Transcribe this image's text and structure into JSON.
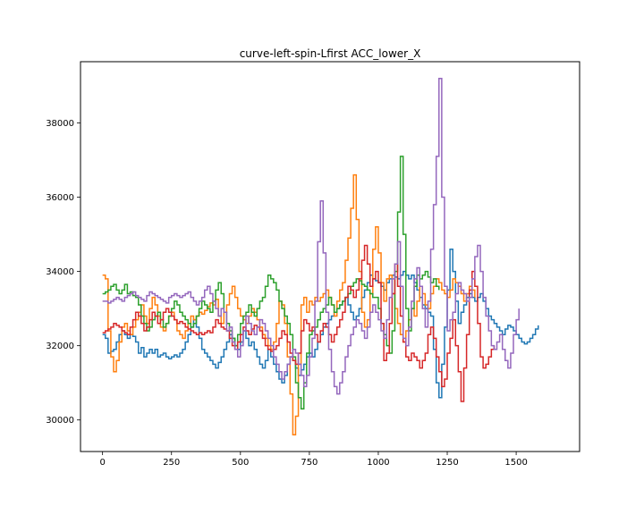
{
  "chart_data": {
    "type": "line",
    "title": "curve-left-spin-Lfirst ACC_lower_X",
    "xlabel": "",
    "ylabel": "",
    "xlim": [
      -80,
      1730
    ],
    "ylim": [
      29150,
      39650
    ],
    "x_ticks": [
      0,
      250,
      500,
      750,
      1000,
      1250,
      1500
    ],
    "x_tick_labels": [
      "0",
      "250",
      "500",
      "750",
      "1000",
      "1250",
      "1500"
    ],
    "y_ticks": [
      30000,
      32000,
      34000,
      36000,
      38000
    ],
    "y_tick_labels": [
      "30000",
      "32000",
      "34000",
      "36000",
      "38000"
    ],
    "grid": false,
    "legend": "none",
    "step": 10,
    "series": [
      {
        "color": "#1f77b4",
        "x0": 0,
        "dx": 10,
        "values": [
          32300,
          32200,
          31800,
          31850,
          31900,
          32100,
          32300,
          32400,
          32300,
          32200,
          32300,
          32250,
          32100,
          31800,
          31950,
          31700,
          31800,
          31900,
          31800,
          31900,
          31700,
          31750,
          31800,
          31700,
          31650,
          31700,
          31750,
          31700,
          31800,
          31900,
          32100,
          32300,
          32500,
          32700,
          32500,
          32200,
          31900,
          31800,
          31700,
          31600,
          31500,
          31400,
          31550,
          31700,
          31900,
          32100,
          32300,
          32200,
          32000,
          31900,
          32100,
          32400,
          32200,
          32000,
          32100,
          31900,
          31700,
          31500,
          31400,
          31600,
          31900,
          31700,
          31500,
          31300,
          31100,
          31000,
          31200,
          31500,
          31700,
          31600,
          31400,
          31200,
          31350,
          31500,
          31700,
          31800,
          31700,
          31900,
          32100,
          32300,
          32500,
          32600,
          32700,
          32800,
          32900,
          33000,
          33100,
          33200,
          33300,
          33100,
          32900,
          32700,
          32800,
          33000,
          33300,
          33500,
          33700,
          33900,
          33800,
          33750,
          33700,
          33600,
          33500,
          33700,
          33800,
          33900,
          33850,
          33800,
          33900,
          34000,
          33900,
          33800,
          33900,
          33700,
          33500,
          33300,
          33100,
          33000,
          32900,
          32800,
          31900,
          31000,
          30600,
          31500,
          32500,
          33500,
          34600,
          34000,
          33200,
          32600,
          32900,
          33100,
          33300,
          33400,
          33300,
          33200,
          33300,
          33400,
          33200,
          33000,
          32800,
          32700,
          32600,
          32500,
          32400,
          32300,
          32450,
          32550,
          32500,
          32400,
          32300,
          32200,
          32100,
          32050,
          32100,
          32200,
          32300,
          32450,
          32550
        ]
      },
      {
        "color": "#ff7f0e",
        "x0": 0,
        "dx": 10,
        "values": [
          33900,
          33800,
          32400,
          31700,
          31300,
          31600,
          32100,
          32500,
          32600,
          32400,
          32300,
          32500,
          32700,
          32900,
          33100,
          32800,
          32600,
          33000,
          33300,
          33100,
          32800,
          32500,
          32400,
          32600,
          32800,
          32900,
          32700,
          32400,
          32300,
          32200,
          32400,
          32600,
          32800,
          32700,
          32800,
          32900,
          32850,
          32950,
          33050,
          33150,
          33100,
          33250,
          32800,
          32600,
          32900,
          33100,
          33400,
          33600,
          33300,
          33000,
          32800,
          32700,
          32600,
          32800,
          33000,
          32900,
          32700,
          32500,
          32300,
          32200,
          32000,
          31900,
          32100,
          32600,
          33200,
          33100,
          32600,
          31700,
          30700,
          29600,
          30100,
          31500,
          33100,
          33300,
          32900,
          33200,
          33100,
          33300,
          33200,
          33300,
          33400,
          33500,
          33300,
          33100,
          32800,
          33200,
          33500,
          33700,
          34300,
          34900,
          35700,
          36600,
          35400,
          34000,
          32900,
          32500,
          32700,
          33400,
          34600,
          35200,
          34500,
          33700,
          33200,
          33800,
          33900,
          33400,
          33000,
          32600,
          32300,
          32100,
          32400,
          32700,
          33000,
          32800,
          33200,
          33600,
          33400,
          33100,
          33000,
          33400,
          33600,
          33800,
          33700,
          33500,
          33400,
          33300,
          33500,
          33800,
          33700,
          33600,
          33400,
          33200,
          33400,
          33600,
          33500,
          33300
        ]
      },
      {
        "color": "#2ca02c",
        "x0": 0,
        "dx": 10,
        "values": [
          33400,
          33450,
          33500,
          33600,
          33650,
          33500,
          33400,
          33500,
          33650,
          33400,
          33450,
          33350,
          33300,
          33100,
          32800,
          32600,
          32400,
          32500,
          32700,
          32800,
          32900,
          32700,
          32500,
          32600,
          32800,
          33000,
          33200,
          33100,
          32900,
          32800,
          32700,
          32600,
          32500,
          32600,
          32800,
          33000,
          33200,
          33100,
          33000,
          32900,
          33200,
          33500,
          33700,
          33400,
          32900,
          32600,
          32400,
          32200,
          32000,
          32300,
          32600,
          32800,
          32900,
          33100,
          32900,
          32800,
          33000,
          33200,
          33300,
          33600,
          33900,
          33800,
          33700,
          33500,
          33200,
          33000,
          32800,
          32600,
          32300,
          31700,
          31000,
          30600,
          30300,
          31000,
          31800,
          32300,
          32400,
          32500,
          32700,
          32900,
          33000,
          33100,
          33300,
          33100,
          32900,
          33000,
          33100,
          33200,
          33300,
          33400,
          33600,
          33700,
          33800,
          33750,
          33650,
          33600,
          33500,
          33400,
          33300,
          33300,
          33000,
          32600,
          32300,
          32000,
          31800,
          32400,
          34000,
          35600,
          37100,
          35000,
          33000,
          32400,
          33000,
          33600,
          33900,
          33800,
          33900,
          34000,
          33850,
          33700,
          33800,
          33600,
          33500
        ]
      },
      {
        "color": "#d62728",
        "x0": 0,
        "dx": 10,
        "values": [
          32350,
          32400,
          32450,
          32500,
          32600,
          32550,
          32500,
          32400,
          32350,
          32300,
          32500,
          32700,
          32900,
          32800,
          32600,
          32400,
          32500,
          32700,
          32900,
          32800,
          32600,
          32700,
          32900,
          33000,
          32900,
          32800,
          32700,
          32600,
          32650,
          32600,
          32500,
          32450,
          32400,
          32350,
          32300,
          32350,
          32300,
          32350,
          32400,
          32350,
          32500,
          32700,
          32600,
          32500,
          32450,
          32400,
          32200,
          32000,
          31900,
          32100,
          32300,
          32500,
          32400,
          32300,
          32450,
          32550,
          32500,
          32400,
          32200,
          32000,
          31900,
          31850,
          31900,
          32000,
          32200,
          32400,
          32300,
          32100,
          31800,
          31600,
          31500,
          31800,
          32400,
          32700,
          32600,
          32400,
          32500,
          32300,
          32100,
          32400,
          32600,
          32500,
          32300,
          32100,
          32300,
          32500,
          32700,
          32900,
          33300,
          33600,
          33500,
          33300,
          33500,
          33800,
          34300,
          34700,
          34200,
          33600,
          33800,
          34000,
          33700,
          32600,
          31600,
          31800,
          32600,
          33400,
          34200,
          33600,
          32800,
          32100,
          31700,
          31600,
          31800,
          31700,
          31600,
          31400,
          31600,
          31800,
          32300,
          32500,
          32200,
          31700,
          31300,
          30900,
          31100,
          31800,
          32200,
          32700,
          32000,
          31300,
          30500,
          31400,
          32300,
          33500,
          34000,
          33600,
          32600,
          31700,
          31400,
          31500,
          31700,
          31900,
          32000
        ]
      },
      {
        "color": "#9467bd",
        "x0": 0,
        "dx": 10,
        "values": [
          33200,
          33200,
          33150,
          33200,
          33250,
          33300,
          33250,
          33200,
          33300,
          33350,
          33400,
          33450,
          33350,
          33300,
          33250,
          33200,
          33350,
          33450,
          33400,
          33350,
          33300,
          33250,
          33200,
          33150,
          33300,
          33350,
          33400,
          33350,
          33300,
          33350,
          33400,
          33450,
          33300,
          33200,
          33100,
          33200,
          33300,
          33500,
          33600,
          33400,
          33200,
          33000,
          32800,
          33000,
          32900,
          32400,
          32500,
          32100,
          31900,
          31700,
          32000,
          32400,
          32800,
          32600,
          32400,
          32300,
          32500,
          32700,
          32600,
          32400,
          32200,
          32000,
          31700,
          31500,
          31300,
          31100,
          31300,
          31500,
          31700,
          31900,
          31800,
          31500,
          31200,
          30900,
          31200,
          31700,
          32200,
          33200,
          34800,
          35900,
          34500,
          32900,
          31900,
          31300,
          30900,
          30700,
          31000,
          31300,
          31700,
          32000,
          32300,
          32500,
          32700,
          32600,
          32400,
          32200,
          32500,
          32900,
          33100,
          32900,
          32700,
          32400,
          32200,
          32700,
          33300,
          33800,
          34200,
          34800,
          33600,
          32200,
          32000,
          32500,
          33200,
          33800,
          34100,
          33600,
          33000,
          32500,
          33200,
          34600,
          35800,
          37100,
          39200,
          36000,
          33600,
          32400,
          32700,
          32900,
          33400,
          33700,
          33500,
          33400,
          33200,
          33300,
          33800,
          34400,
          34700,
          34000,
          33300,
          32800,
          32400,
          32000,
          31900,
          32100,
          32300,
          31900,
          31600,
          31400,
          31800,
          32300,
          32700,
          33000
        ]
      }
    ]
  }
}
